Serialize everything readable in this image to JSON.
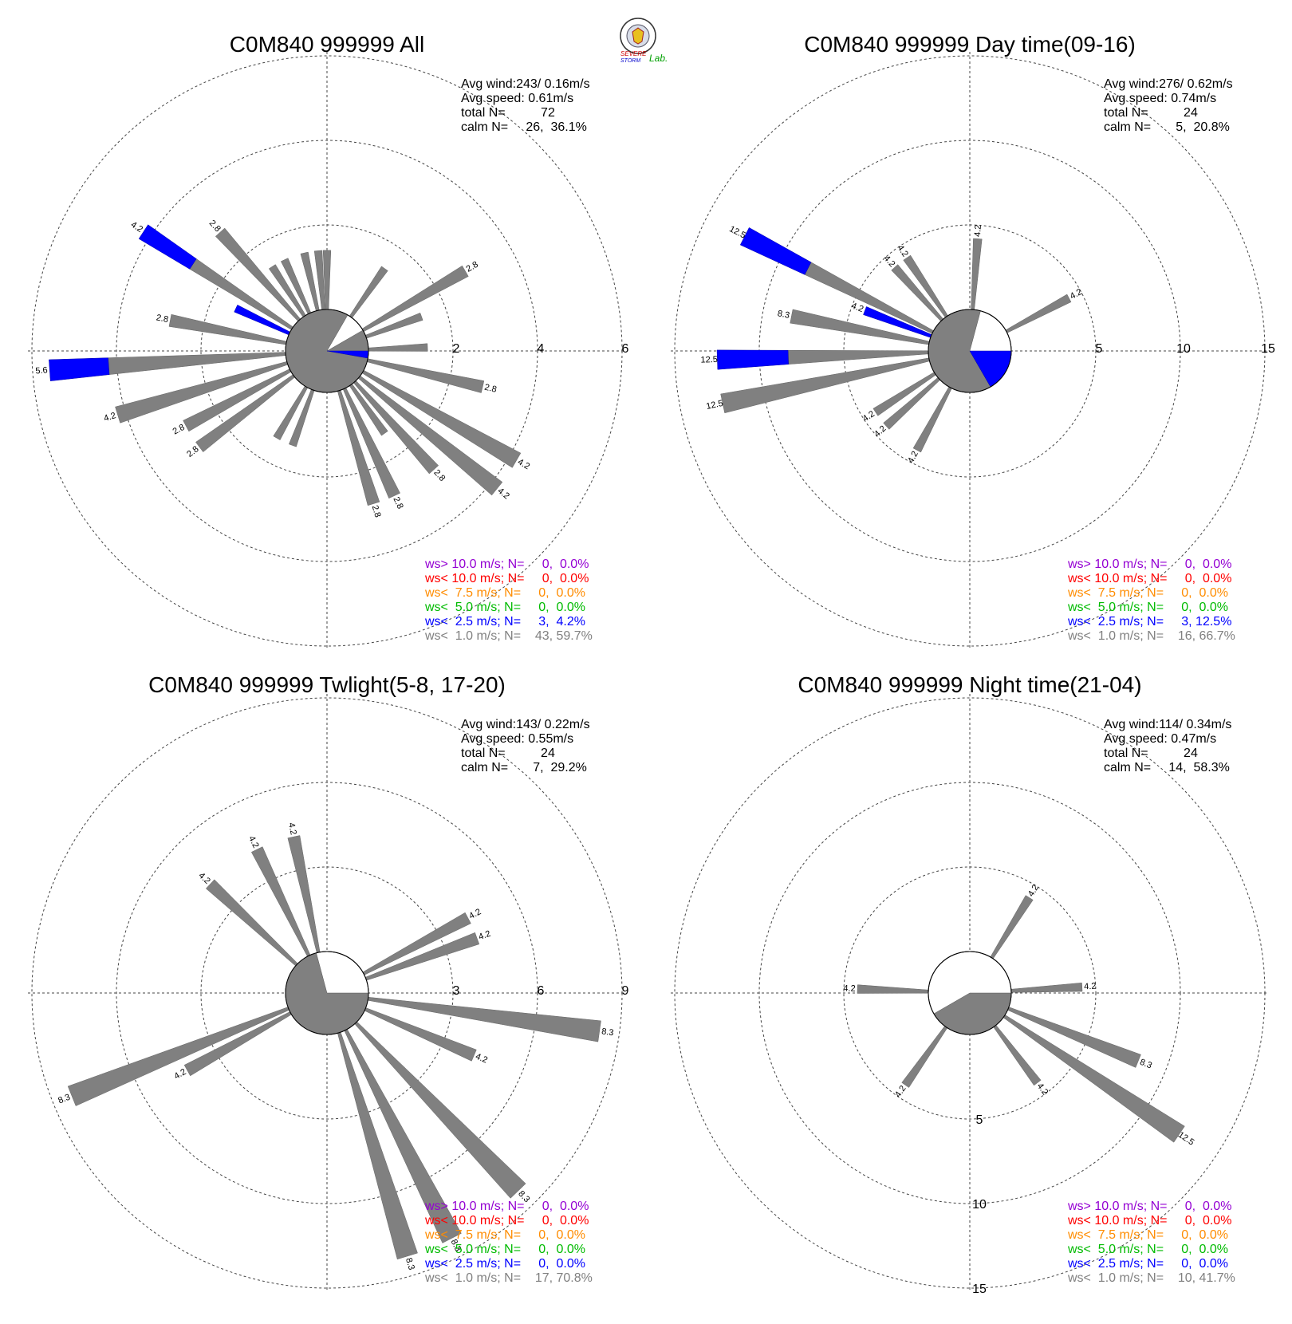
{
  "logo": {
    "text1": "SEVERE",
    "text2": "STORM",
    "text3": "Lab."
  },
  "legend_colors": {
    "gt10": "#9400d3",
    "lt10": "#ff0000",
    "lt75": "#ff8c00",
    "lt5": "#00bb00",
    "lt25": "#0000ff",
    "lt1": "#808080"
  },
  "chart_data": [
    {
      "type": "wind-rose",
      "title": "C0M840 999999 All",
      "ring_ticks": [
        "2",
        "4",
        "6"
      ],
      "rmax": 6,
      "info": [
        "Avg wind:243/ 0.16m/s",
        "Avg speed: 0.61m/s",
        "total N=          72",
        "calm N=     26,  36.1%"
      ],
      "legend": [
        {
          "text": "ws> 10.0 m/s; N=     0,  0.0%",
          "color": "gt10"
        },
        {
          "text": "ws< 10.0 m/s; N=     0,  0.0%",
          "color": "lt10"
        },
        {
          "text": "ws<  7.5 m/s; N=     0,  0.0%",
          "color": "lt75"
        },
        {
          "text": "ws<  5.0 m/s; N=     0,  0.0%",
          "color": "lt5"
        },
        {
          "text": "ws<  2.5 m/s; N=     3,  4.2%",
          "color": "lt25"
        },
        {
          "text": "ws<  1.0 m/s; N=    43, 59.7%",
          "color": "lt1"
        }
      ],
      "calm_pie": {
        "gray_from": 60,
        "gray_to": 390,
        "blue_from": 90,
        "blue_to": 100
      },
      "petals": [
        {
          "dir": 0,
          "total": 1.4,
          "blue": 0,
          "label": ""
        },
        {
          "dir": 35,
          "total": 1.4,
          "blue": 0,
          "label": ""
        },
        {
          "dir": 60,
          "total": 2.8,
          "blue": 0,
          "label": "2.8"
        },
        {
          "dir": 70,
          "total": 1.4,
          "blue": 0,
          "label": ""
        },
        {
          "dir": 88,
          "total": 1.4,
          "blue": 0,
          "label": ""
        },
        {
          "dir": 103,
          "total": 2.8,
          "blue": 0,
          "label": "2.8"
        },
        {
          "dir": 120,
          "total": 4.2,
          "blue": 0,
          "label": "4.2"
        },
        {
          "dir": 129,
          "total": 4.2,
          "blue": 0,
          "label": "4.2"
        },
        {
          "dir": 138,
          "total": 2.8,
          "blue": 0,
          "label": "2.8"
        },
        {
          "dir": 145,
          "total": 1.4,
          "blue": 0,
          "label": ""
        },
        {
          "dir": 155,
          "total": 2.8,
          "blue": 0,
          "label": "2.8"
        },
        {
          "dir": 163,
          "total": 2.8,
          "blue": 0,
          "label": "2.8"
        },
        {
          "dir": 200,
          "total": 1.4,
          "blue": 0,
          "label": ""
        },
        {
          "dir": 210,
          "total": 1.4,
          "blue": 0,
          "label": ""
        },
        {
          "dir": 233,
          "total": 2.8,
          "blue": 0,
          "label": "2.8"
        },
        {
          "dir": 242,
          "total": 2.8,
          "blue": 0,
          "label": "2.8"
        },
        {
          "dir": 253,
          "total": 4.2,
          "blue": 0,
          "label": "4.2"
        },
        {
          "dir": 266,
          "total": 5.6,
          "blue": 1.4,
          "label": "5.6"
        },
        {
          "dir": 281,
          "total": 2.8,
          "blue": 0,
          "label": "2.8"
        },
        {
          "dir": 295,
          "total": 1.4,
          "blue": 1.4,
          "label": ""
        },
        {
          "dir": 303,
          "total": 4.2,
          "blue": 1.4,
          "label": "4.2"
        },
        {
          "dir": 318,
          "total": 2.8,
          "blue": 0,
          "label": "2.8"
        },
        {
          "dir": 327,
          "total": 1.4,
          "blue": 0,
          "label": ""
        },
        {
          "dir": 335,
          "total": 1.4,
          "blue": 0,
          "label": ""
        },
        {
          "dir": 347,
          "total": 1.4,
          "blue": 0,
          "label": ""
        },
        {
          "dir": 355,
          "total": 1.4,
          "blue": 0,
          "label": ""
        }
      ]
    },
    {
      "type": "wind-rose",
      "title": "C0M840 999999 Day time(09-16)",
      "ring_ticks": [
        "5",
        "10",
        "15"
      ],
      "rmax": 15,
      "info": [
        "Avg wind:276/ 0.62m/s",
        "Avg speed: 0.74m/s",
        "total N=          24",
        "calm N=       5,  20.8%"
      ],
      "legend": [
        {
          "text": "ws> 10.0 m/s; N=     0,  0.0%",
          "color": "gt10"
        },
        {
          "text": "ws< 10.0 m/s; N=     0,  0.0%",
          "color": "lt10"
        },
        {
          "text": "ws<  7.5 m/s; N=     0,  0.0%",
          "color": "lt75"
        },
        {
          "text": "ws<  5.0 m/s; N=     0,  0.0%",
          "color": "lt5"
        },
        {
          "text": "ws<  2.5 m/s; N=     3, 12.5%",
          "color": "lt25"
        },
        {
          "text": "ws<  1.0 m/s; N=    16, 66.7%",
          "color": "lt1"
        }
      ],
      "calm_pie": {
        "gray_from": 150,
        "gray_to": 375,
        "blue_from": 90,
        "blue_to": 150
      },
      "petals": [
        {
          "dir": 4,
          "total": 4.2,
          "blue": 0,
          "label": "4.2"
        },
        {
          "dir": 62,
          "total": 4.2,
          "blue": 0,
          "label": "4.2"
        },
        {
          "dir": 208,
          "total": 4.2,
          "blue": 0,
          "label": "4.2"
        },
        {
          "dir": 228,
          "total": 4.2,
          "blue": 0,
          "label": "4.2"
        },
        {
          "dir": 237,
          "total": 4.2,
          "blue": 0,
          "label": "4.2"
        },
        {
          "dir": 258,
          "total": 12.5,
          "blue": 0,
          "label": "12.5"
        },
        {
          "dir": 268,
          "total": 12.5,
          "blue": 4.2,
          "label": "12.5"
        },
        {
          "dir": 281,
          "total": 8.3,
          "blue": 0,
          "label": "8.3"
        },
        {
          "dir": 291,
          "total": 4.2,
          "blue": 4.2,
          "label": "4.2"
        },
        {
          "dir": 297,
          "total": 12.5,
          "blue": 4.2,
          "label": "12.5"
        },
        {
          "dir": 318,
          "total": 4.2,
          "blue": 0,
          "label": "4.2"
        },
        {
          "dir": 326,
          "total": 4.2,
          "blue": 0,
          "label": "4.2"
        }
      ]
    },
    {
      "type": "wind-rose",
      "title": "C0M840 999999 Twlight(5-8, 17-20)",
      "ring_ticks": [
        "3",
        "6",
        "9"
      ],
      "rmax": 9,
      "info": [
        "Avg wind:143/ 0.22m/s",
        "Avg speed: 0.55m/s",
        "total N=          24",
        "calm N=       7,  29.2%"
      ],
      "legend": [
        {
          "text": "ws> 10.0 m/s; N=     0,  0.0%",
          "color": "gt10"
        },
        {
          "text": "ws< 10.0 m/s; N=     0,  0.0%",
          "color": "lt10"
        },
        {
          "text": "ws<  7.5 m/s; N=     0,  0.0%",
          "color": "lt75"
        },
        {
          "text": "ws<  5.0 m/s; N=     0,  0.0%",
          "color": "lt5"
        },
        {
          "text": "ws<  2.5 m/s; N=     0,  0.0%",
          "color": "lt25"
        },
        {
          "text": "ws<  1.0 m/s; N=    17, 70.8%",
          "color": "lt1"
        }
      ],
      "calm_pie": {
        "gray_from": 90,
        "gray_to": 345,
        "blue_from": 0,
        "blue_to": 0
      },
      "petals": [
        {
          "dir": 62,
          "total": 4.2,
          "blue": 0,
          "label": "4.2"
        },
        {
          "dir": 70,
          "total": 4.2,
          "blue": 0,
          "label": "4.2"
        },
        {
          "dir": 98,
          "total": 8.3,
          "blue": 0,
          "label": "8.3"
        },
        {
          "dir": 113,
          "total": 4.2,
          "blue": 0,
          "label": "4.2"
        },
        {
          "dir": 136,
          "total": 8.3,
          "blue": 0,
          "label": "8.3"
        },
        {
          "dir": 153,
          "total": 8.3,
          "blue": 0,
          "label": "8.3"
        },
        {
          "dir": 163,
          "total": 8.3,
          "blue": 0,
          "label": "8.3"
        },
        {
          "dir": 241,
          "total": 4.2,
          "blue": 0,
          "label": "4.2"
        },
        {
          "dir": 248,
          "total": 8.3,
          "blue": 0,
          "label": "8.3"
        },
        {
          "dir": 313,
          "total": 4.2,
          "blue": 0,
          "label": "4.2"
        },
        {
          "dir": 334,
          "total": 4.2,
          "blue": 0,
          "label": "4.2"
        },
        {
          "dir": 348,
          "total": 4.2,
          "blue": 0,
          "label": "4.2"
        }
      ]
    },
    {
      "type": "wind-rose",
      "title": "C0M840 999999 Night time(21-04)",
      "ring_ticks": [
        "5",
        "10",
        "15"
      ],
      "rmax": 15,
      "tick_axis": "south",
      "info": [
        "Avg wind:114/ 0.34m/s",
        "Avg speed: 0.47m/s",
        "total N=          24",
        "calm N=     14,  58.3%"
      ],
      "legend": [
        {
          "text": "ws> 10.0 m/s; N=     0,  0.0%",
          "color": "gt10"
        },
        {
          "text": "ws< 10.0 m/s; N=     0,  0.0%",
          "color": "lt10"
        },
        {
          "text": "ws<  7.5 m/s; N=     0,  0.0%",
          "color": "lt75"
        },
        {
          "text": "ws<  5.0 m/s; N=     0,  0.0%",
          "color": "lt5"
        },
        {
          "text": "ws<  2.5 m/s; N=     0,  0.0%",
          "color": "lt25"
        },
        {
          "text": "ws<  1.0 m/s; N=    10, 41.7%",
          "color": "lt1"
        }
      ],
      "calm_pie": {
        "gray_from": 90,
        "gray_to": 240,
        "blue_from": 0,
        "blue_to": 0
      },
      "petals": [
        {
          "dir": 32,
          "total": 4.2,
          "blue": 0,
          "label": "4.2"
        },
        {
          "dir": 87,
          "total": 4.2,
          "blue": 0,
          "label": "4.2"
        },
        {
          "dir": 112,
          "total": 8.3,
          "blue": 0,
          "label": "8.3"
        },
        {
          "dir": 124,
          "total": 12.5,
          "blue": 0,
          "label": "12.5"
        },
        {
          "dir": 143,
          "total": 4.2,
          "blue": 0,
          "label": "4.2"
        },
        {
          "dir": 215,
          "total": 4.2,
          "blue": 0,
          "label": "4.2"
        },
        {
          "dir": 272,
          "total": 4.2,
          "blue": 0,
          "label": "4.2"
        }
      ]
    }
  ]
}
